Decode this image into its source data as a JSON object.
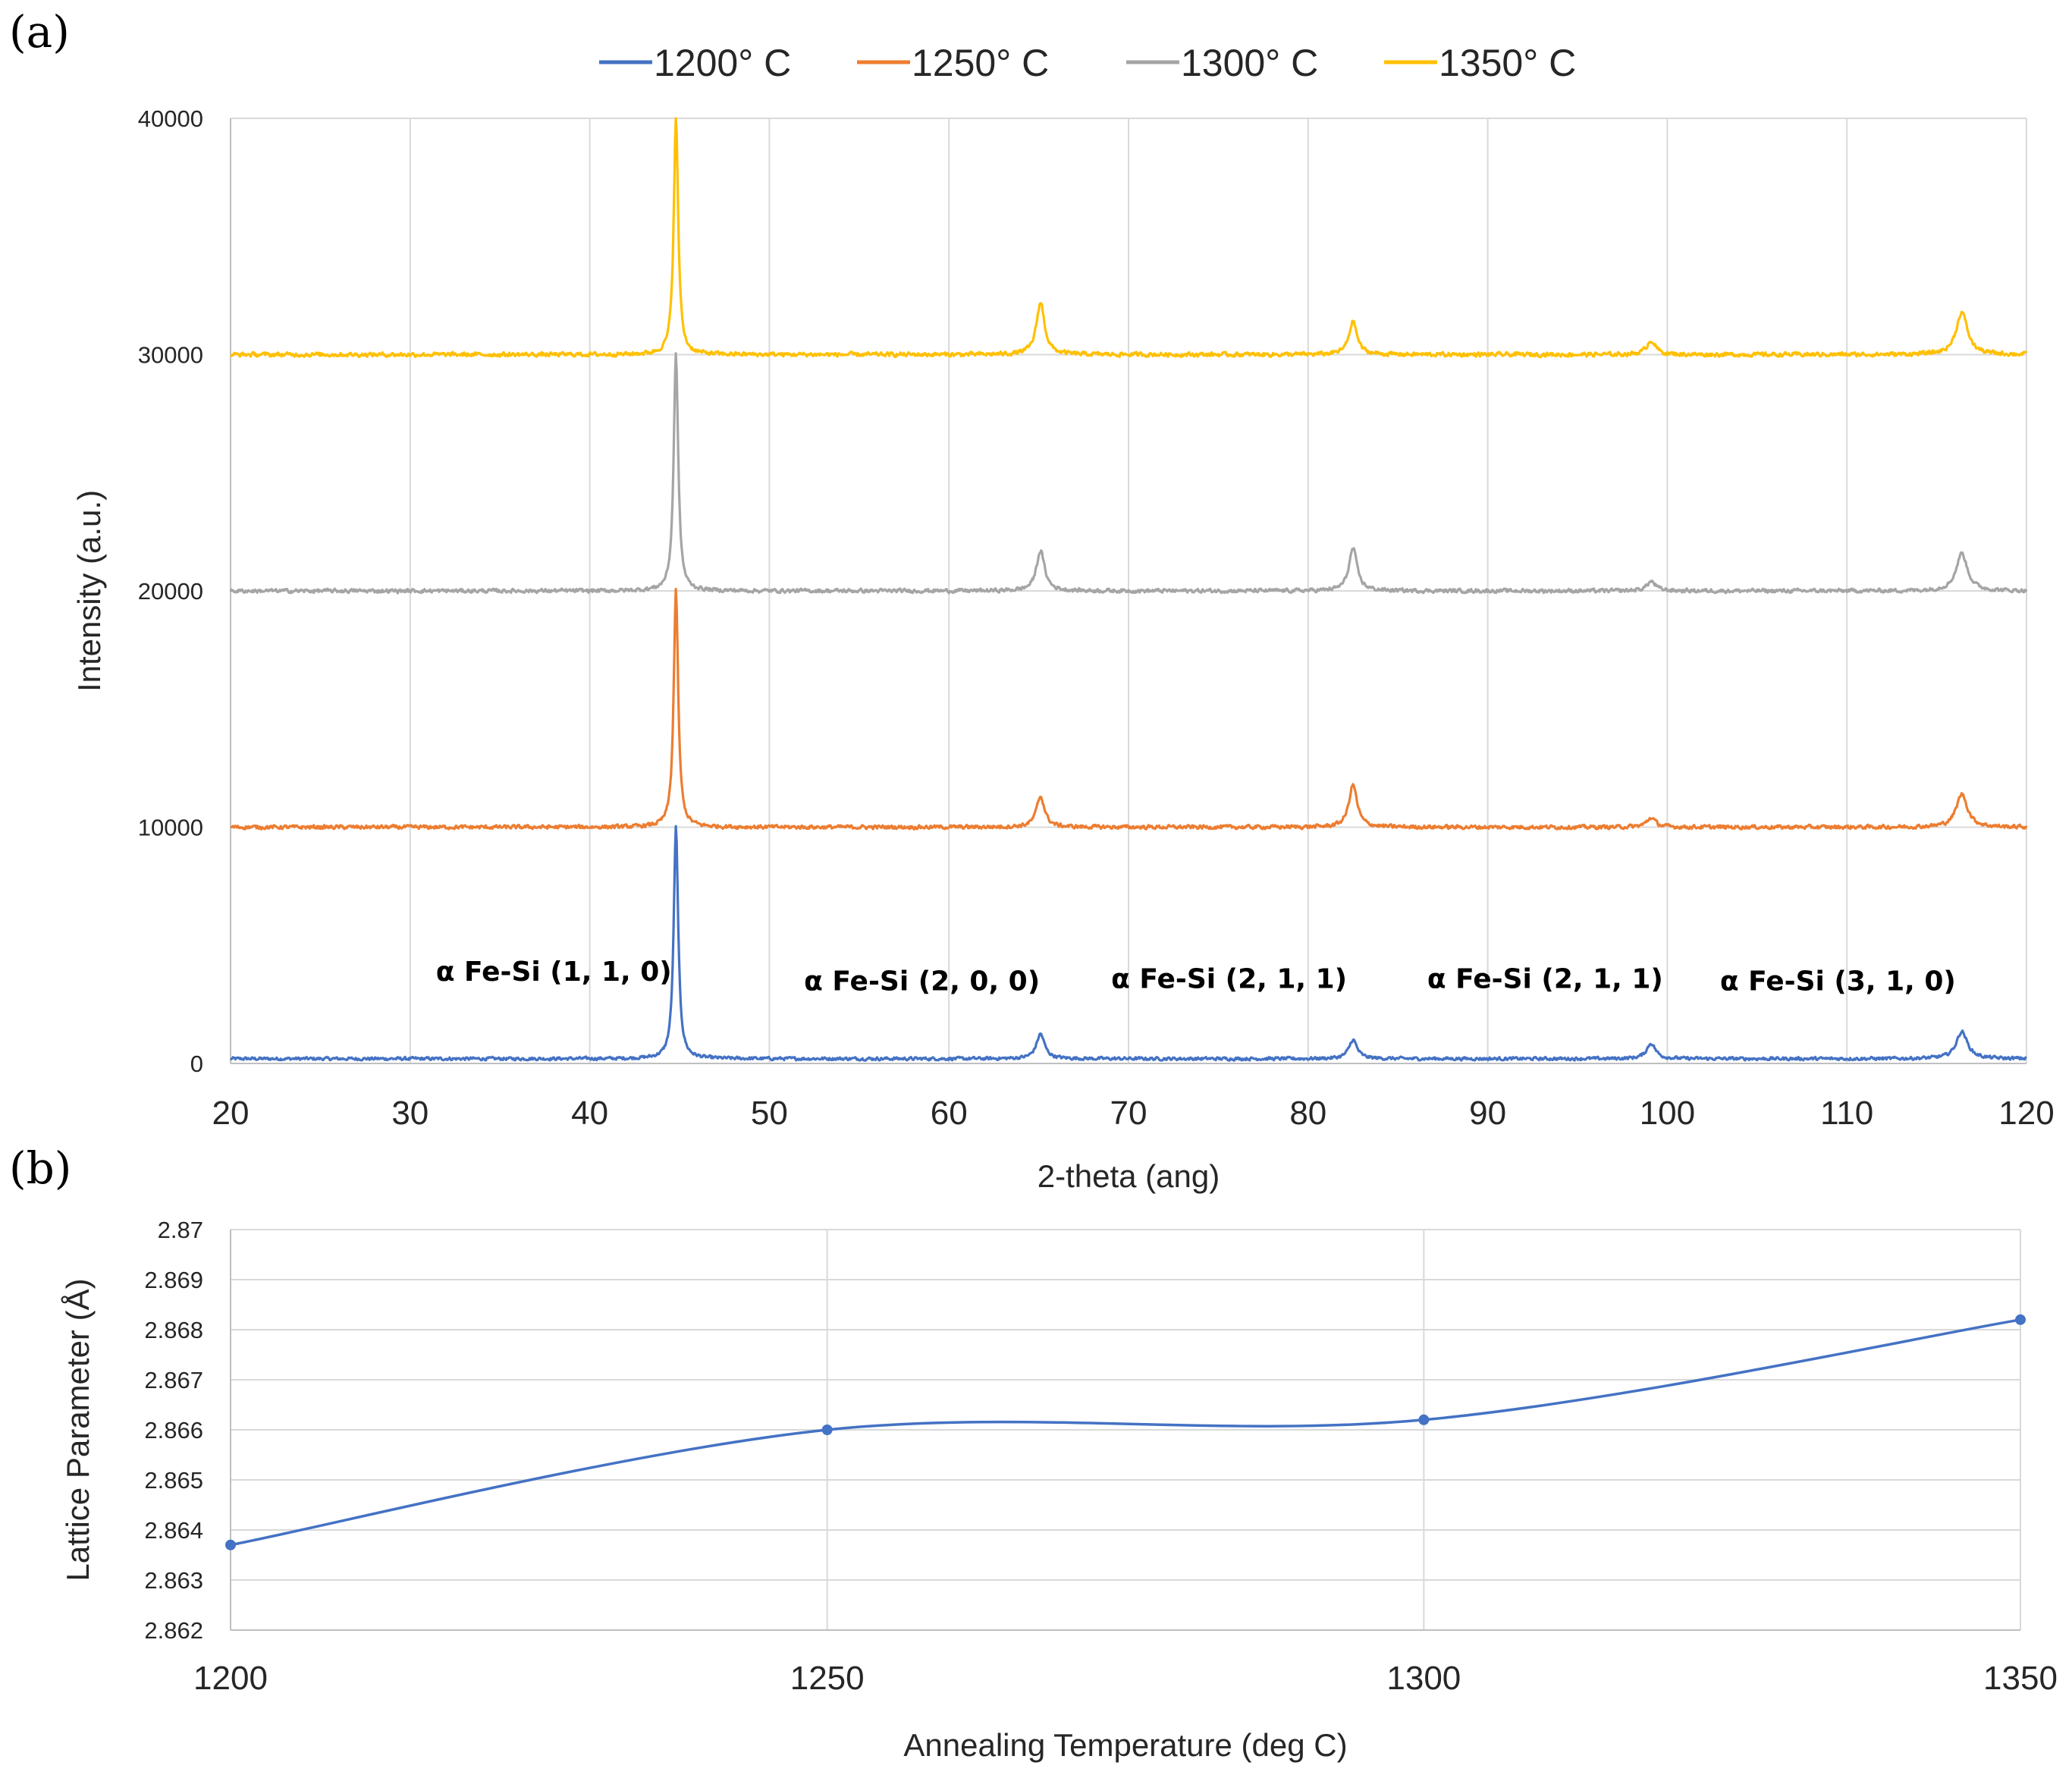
{
  "panels": {
    "a": "(a)",
    "b": "(b)"
  },
  "chart_data": [
    {
      "type": "line",
      "id": "xrd",
      "title": "",
      "xlabel": "2-theta (ang)",
      "ylabel": "Intensity (a.u.)",
      "xlim": [
        20,
        120
      ],
      "ylim": [
        0,
        40000
      ],
      "xticks": [
        20,
        30,
        40,
        50,
        60,
        70,
        80,
        90,
        100,
        110,
        120
      ],
      "yticks": [
        0,
        10000,
        20000,
        30000,
        40000
      ],
      "grid": true,
      "legend_position": "top",
      "peaks_2theta": [
        44.8,
        65.1,
        82.5,
        99.1,
        116.4
      ],
      "series": [
        {
          "name": "1200° C",
          "color": "#4472c4",
          "baseline": 200,
          "peak_intensity": [
            10000,
            1250,
            1000,
            850,
            1350
          ],
          "peak_width": [
            0.3,
            0.55,
            0.55,
            0.6,
            0.75
          ],
          "noise": 90
        },
        {
          "name": "1250° C",
          "color": "#ed7d31",
          "baseline": 10000,
          "peak_intensity": [
            20000,
            11300,
            11800,
            10400,
            11400
          ],
          "peak_width": [
            0.3,
            0.55,
            0.55,
            0.6,
            0.75
          ],
          "noise": 110
        },
        {
          "name": "1300° C",
          "color": "#a5a5a5",
          "baseline": 20000,
          "peak_intensity": [
            30000,
            21700,
            21800,
            20400,
            21600
          ],
          "peak_width": [
            0.3,
            0.55,
            0.55,
            0.6,
            0.75
          ],
          "noise": 110
        },
        {
          "name": "1350° C",
          "color": "#ffc000",
          "baseline": 30000,
          "peak_intensity": [
            40000,
            32200,
            31400,
            30600,
            31800
          ],
          "peak_width": [
            0.3,
            0.55,
            0.55,
            0.6,
            0.75
          ],
          "noise": 120
        }
      ],
      "annotations": [
        {
          "text": "α Fe-Si (1, 1, 0)",
          "x": 38,
          "y": 3500
        },
        {
          "text": "α Fe-Si (2, 0, 0)",
          "x": 58.5,
          "y": 3100
        },
        {
          "text": "α Fe-Si (2, 1, 1)",
          "x": 75.6,
          "y": 3200
        },
        {
          "text": "α Fe-Si (2, 1, 1)",
          "x": 93.2,
          "y": 3200
        },
        {
          "text": "α Fe-Si (3, 1, 0)",
          "x": 109.5,
          "y": 3100
        }
      ]
    },
    {
      "type": "line",
      "id": "lattice",
      "title": "",
      "xlabel": "Annealing Temperature (deg C)",
      "ylabel": "Lattice Parameter (Å)",
      "categories": [
        "1200",
        "1250",
        "1300",
        "1350"
      ],
      "values": [
        2.8637,
        2.866,
        2.8662,
        2.8682
      ],
      "ylim": [
        2.862,
        2.87
      ],
      "yticks": [
        "2.862",
        "2.863",
        "2.864",
        "2.865",
        "2.866",
        "2.867",
        "2.868",
        "2.869",
        "2.87"
      ],
      "grid": true,
      "smooth": true,
      "color": "#4472c4"
    }
  ]
}
